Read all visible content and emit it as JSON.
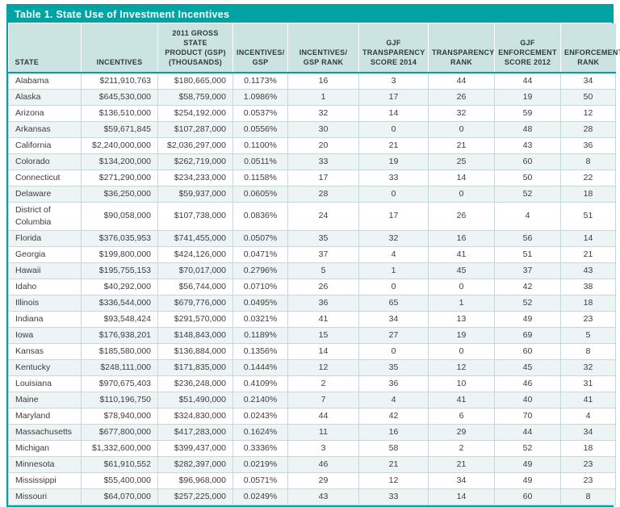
{
  "colors": {
    "accent_teal": "#00A3A3",
    "header_background": "#CBE4E2",
    "alternate_row_background": "#EDF4F5",
    "grid_line": "#C6D8D7",
    "title_text": "#FFFFFF",
    "cell_text": "#3D3D3D"
  },
  "chart_data": {
    "type": "table",
    "title": "Table 1. State Use of Investment Incentives",
    "legend_position": "none",
    "grid": true,
    "columns": [
      {
        "key": "state",
        "label": "STATE",
        "align": "left"
      },
      {
        "key": "incentives",
        "label": "INCENTIVES",
        "align": "right"
      },
      {
        "key": "gsp_2011",
        "label": "2011 GROSS STATE\nPRODUCT (GSP)\n(THOUSANDS)",
        "align": "right"
      },
      {
        "key": "incentives_gsp",
        "label": "INCENTIVES/\nGSP",
        "align": "center"
      },
      {
        "key": "incentives_gsp_rank",
        "label": "INCENTIVES/\nGSP RANK",
        "align": "center"
      },
      {
        "key": "gjf_transparency_score_2014",
        "label": "GJF\nTRANSPARENCY\nSCORE 2014",
        "align": "center"
      },
      {
        "key": "transparency_rank",
        "label": "TRANSPARENCY\nRANK",
        "align": "center"
      },
      {
        "key": "gjf_enforcement_score_2012",
        "label": "GJF\nENFORCEMENT\nSCORE 2012",
        "align": "center"
      },
      {
        "key": "enforcement_rank",
        "label": "ENFORCEMENT\nRANK",
        "align": "center"
      }
    ],
    "rows": [
      [
        "Alabama",
        "$211,910,763",
        "$180,665,000",
        "0.1173%",
        "16",
        "3",
        "44",
        "44",
        "34"
      ],
      [
        "Alaska",
        "$645,530,000",
        "$58,759,000",
        "1.0986%",
        "1",
        "17",
        "26",
        "19",
        "50"
      ],
      [
        "Arizona",
        "$136,510,000",
        "$254,192,000",
        "0.0537%",
        "32",
        "14",
        "32",
        "59",
        "12"
      ],
      [
        "Arkansas",
        "$59,671,845",
        "$107,287,000",
        "0.0556%",
        "30",
        "0",
        "0",
        "48",
        "28"
      ],
      [
        "California",
        "$2,240,000,000",
        "$2,036,297,000",
        "0.1100%",
        "20",
        "21",
        "21",
        "43",
        "36"
      ],
      [
        "Colorado",
        "$134,200,000",
        "$262,719,000",
        "0.0511%",
        "33",
        "19",
        "25",
        "60",
        "8"
      ],
      [
        "Connecticut",
        "$271,290,000",
        "$234,233,000",
        "0.1158%",
        "17",
        "33",
        "14",
        "50",
        "22"
      ],
      [
        "Delaware",
        "$36,250,000",
        "$59,937,000",
        "0.0605%",
        "28",
        "0",
        "0",
        "52",
        "18"
      ],
      [
        "District of Columbia",
        "$90,058,000",
        "$107,738,000",
        "0.0836%",
        "24",
        "17",
        "26",
        "4",
        "51"
      ],
      [
        "Florida",
        "$376,035,953",
        "$741,455,000",
        "0.0507%",
        "35",
        "32",
        "16",
        "56",
        "14"
      ],
      [
        "Georgia",
        "$199,800,000",
        "$424,126,000",
        "0.0471%",
        "37",
        "4",
        "41",
        "51",
        "21"
      ],
      [
        "Hawaii",
        "$195,755,153",
        "$70,017,000",
        "0.2796%",
        "5",
        "1",
        "45",
        "37",
        "43"
      ],
      [
        "Idaho",
        "$40,292,000",
        "$56,744,000",
        "0.0710%",
        "26",
        "0",
        "0",
        "42",
        "38"
      ],
      [
        "Illinois",
        "$336,544,000",
        "$679,776,000",
        "0.0495%",
        "36",
        "65",
        "1",
        "52",
        "18"
      ],
      [
        "Indiana",
        "$93,548,424",
        "$291,570,000",
        "0.0321%",
        "41",
        "34",
        "13",
        "49",
        "23"
      ],
      [
        "Iowa",
        "$176,938,201",
        "$148,843,000",
        "0.1189%",
        "15",
        "27",
        "19",
        "69",
        "5"
      ],
      [
        "Kansas",
        "$185,580,000",
        "$136,884,000",
        "0.1356%",
        "14",
        "0",
        "0",
        "60",
        "8"
      ],
      [
        "Kentucky",
        "$248,111,000",
        "$171,835,000",
        "0.1444%",
        "12",
        "35",
        "12",
        "45",
        "32"
      ],
      [
        "Louisiana",
        "$970,675,403",
        "$236,248,000",
        "0.4109%",
        "2",
        "36",
        "10",
        "46",
        "31"
      ],
      [
        "Maine",
        "$110,196,750",
        "$51,490,000",
        "0.2140%",
        "7",
        "4",
        "41",
        "40",
        "41"
      ],
      [
        "Maryland",
        "$78,940,000",
        "$324,830,000",
        "0.0243%",
        "44",
        "42",
        "6",
        "70",
        "4"
      ],
      [
        "Massachusetts",
        "$677,800,000",
        "$417,283,000",
        "0.1624%",
        "11",
        "16",
        "29",
        "44",
        "34"
      ],
      [
        "Michigan",
        "$1,332,600,000",
        "$399,437,000",
        "0.3336%",
        "3",
        "58",
        "2",
        "52",
        "18"
      ],
      [
        "Minnesota",
        "$61,910,552",
        "$282,397,000",
        "0.0219%",
        "46",
        "21",
        "21",
        "49",
        "23"
      ],
      [
        "Mississippi",
        "$55,400,000",
        "$96,968,000",
        "0.0571%",
        "29",
        "12",
        "34",
        "49",
        "23"
      ],
      [
        "Missouri",
        "$64,070,000",
        "$257,225,000",
        "0.0249%",
        "43",
        "33",
        "14",
        "60",
        "8"
      ]
    ]
  }
}
